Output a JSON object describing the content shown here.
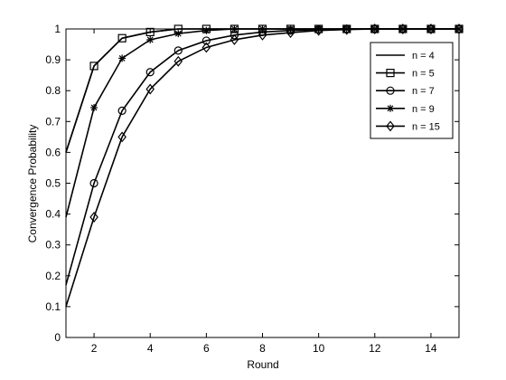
{
  "chart_data": {
    "type": "line",
    "xlabel": "Round",
    "ylabel": "Convergence Probability",
    "xlim": [
      1,
      15
    ],
    "ylim": [
      0,
      1
    ],
    "xticks": [
      2,
      4,
      6,
      8,
      10,
      12,
      14
    ],
    "yticks": [
      0,
      0.1,
      0.2,
      0.3,
      0.4,
      0.5,
      0.6,
      0.7,
      0.8,
      0.9,
      1
    ],
    "grid": false,
    "legend_position": "top-right",
    "x": [
      1,
      2,
      3,
      4,
      5,
      6,
      7,
      8,
      9,
      10,
      11,
      12,
      13,
      14,
      15
    ],
    "series": [
      {
        "name": "n = 4",
        "marker": "none",
        "values": [
          0.6,
          0.88,
          0.97,
          0.99,
          1.0,
          1.0,
          1.0,
          1.0,
          1.0,
          1.0,
          1.0,
          1.0,
          1.0,
          1.0,
          1.0
        ]
      },
      {
        "name": "n = 5",
        "marker": "square",
        "values": [
          0.6,
          0.88,
          0.97,
          0.99,
          1.0,
          1.0,
          1.0,
          1.0,
          1.0,
          1.0,
          1.0,
          1.0,
          1.0,
          1.0,
          1.0
        ]
      },
      {
        "name": "n = 7",
        "marker": "circle",
        "values": [
          0.17,
          0.5,
          0.735,
          0.86,
          0.93,
          0.962,
          0.98,
          0.99,
          0.995,
          0.998,
          1.0,
          1.0,
          1.0,
          1.0,
          1.0
        ]
      },
      {
        "name": "n = 9",
        "marker": "star",
        "values": [
          0.39,
          0.745,
          0.905,
          0.965,
          0.985,
          0.995,
          1.0,
          1.0,
          1.0,
          1.0,
          1.0,
          1.0,
          1.0,
          1.0,
          1.0
        ]
      },
      {
        "name": "n = 15",
        "marker": "diamond",
        "values": [
          0.1,
          0.39,
          0.65,
          0.805,
          0.895,
          0.94,
          0.965,
          0.98,
          0.988,
          0.995,
          0.998,
          1.0,
          1.0,
          1.0,
          1.0
        ]
      }
    ]
  }
}
